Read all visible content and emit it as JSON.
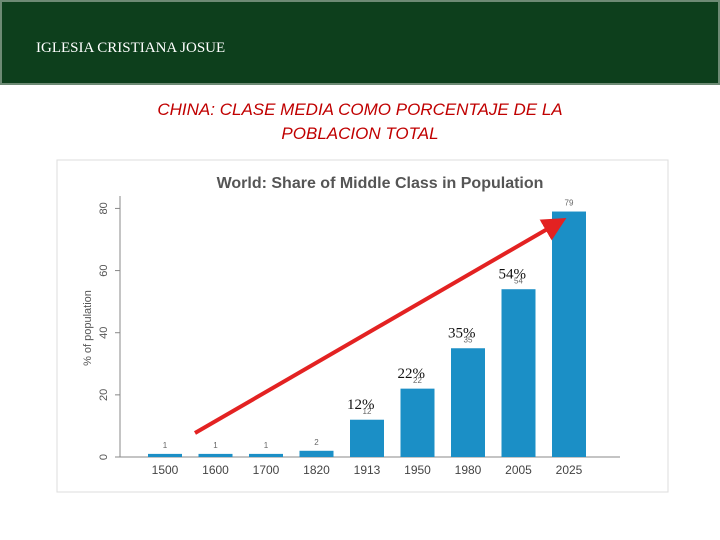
{
  "header": {
    "title": "IGLESIA CRISTIANA JOSUE"
  },
  "slide_title": [
    "CHINA: CLASE MEDIA COMO PORCENTAJE DE LA",
    "POBLACION TOTAL"
  ],
  "chart_data": {
    "type": "bar",
    "title": "World: Share of Middle Class in Population",
    "y_label": "% of population",
    "categories": [
      "1500",
      "1600",
      "1700",
      "1820",
      "1913",
      "1950",
      "1980",
      "2005",
      "2025"
    ],
    "values": [
      1,
      1,
      1,
      2,
      12,
      22,
      35,
      54,
      79
    ],
    "color": "#1b8fc6",
    "ylim": [
      0,
      84
    ],
    "yticks": [
      0,
      20,
      40,
      60,
      80
    ],
    "grid": false,
    "annotations": [
      "12%",
      "22%",
      "35%",
      "54%"
    ],
    "arrow_color": "#e32222"
  }
}
